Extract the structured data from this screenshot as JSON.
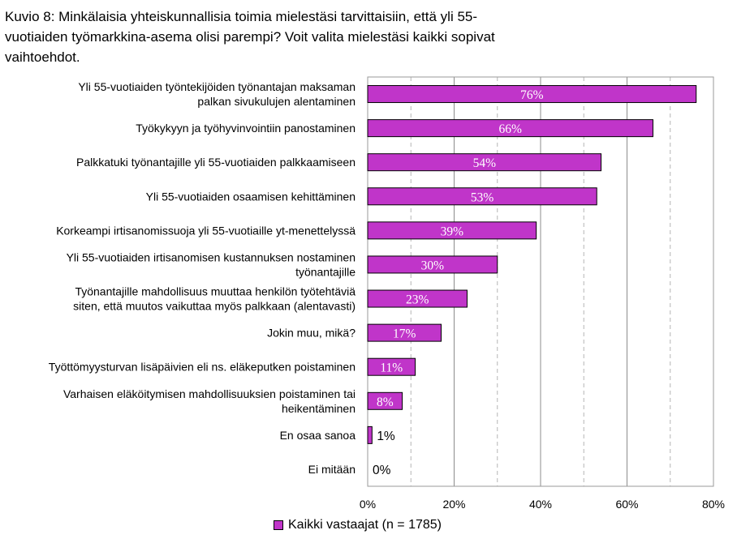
{
  "chart_data": {
    "type": "bar",
    "orientation": "horizontal",
    "title": "Kuvio 8: Minkälaisia yhteiskunnallisia toimia mielestäsi tarvittaisiin, että yli 55-vuotiaiden työmarkkina-asema olisi parempi? Voit valita mielestäsi kaikki sopivat vaihtoehdot.",
    "title_lines": [
      "Kuvio 8: Minkälaisia yhteiskunnallisia toimia mielestäsi tarvittaisiin, että yli 55-",
      "vuotiaiden työmarkkina-asema olisi parempi? Voit valita mielestäsi kaikki sopivat",
      "vaihtoehdot."
    ],
    "categories": [
      [
        "Yli 55-vuotiaiden työntekijöiden työnantajan maksaman",
        "palkan sivukulujen alentaminen"
      ],
      [
        "Työkykyyn ja työhyvinvointiin panostaminen"
      ],
      [
        "Palkkatuki työnantajille yli 55-vuotiaiden palkkaamiseen"
      ],
      [
        "Yli 55-vuotiaiden osaamisen kehittäminen"
      ],
      [
        "Korkeampi irtisanomissuoja yli 55-vuotiaille yt-menettelyssä"
      ],
      [
        "Yli 55-vuotiaiden irtisanomisen kustannuksen nostaminen",
        "työnantajille"
      ],
      [
        "Työnantajille mahdollisuus muuttaa henkilön työtehtäviä",
        "siten, että muutos vaikuttaa myös palkkaan (alentavasti)"
      ],
      [
        "Jokin muu, mikä?"
      ],
      [
        "Työttömyysturvan lisäpäivien eli ns. eläkeputken poistaminen"
      ],
      [
        "Varhaisen eläköitymisen mahdollisuuksien poistaminen tai",
        "heikentäminen"
      ],
      [
        "En osaa sanoa"
      ],
      [
        "Ei mitään"
      ]
    ],
    "series": [
      {
        "name": "Kaikki vastaajat (n = 1785)",
        "color": "#c035c9",
        "values": [
          76,
          66,
          54,
          53,
          39,
          30,
          23,
          17,
          11,
          8,
          1,
          0
        ],
        "data_labels": [
          "76%",
          "66%",
          "54%",
          "53%",
          "39%",
          "30%",
          "23%",
          "17%",
          "11%",
          "8%",
          "1%",
          "0%"
        ]
      }
    ],
    "xlim": [
      0,
      80
    ],
    "x_ticks": [
      0,
      20,
      40,
      60,
      80
    ],
    "x_tick_labels": [
      "0%",
      "20%",
      "40%",
      "60%",
      "80%"
    ],
    "grid": "vertical",
    "legend_position": "bottom"
  }
}
